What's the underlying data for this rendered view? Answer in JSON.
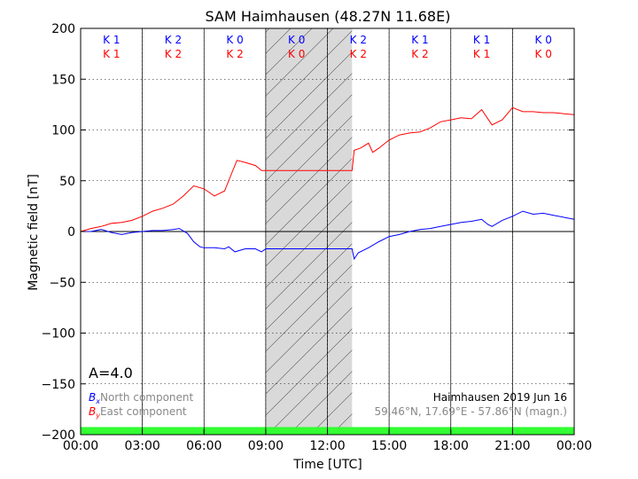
{
  "chart_data": {
    "type": "line",
    "title": "SAM Haimhausen (48.27N 11.68E)",
    "xlabel": "Time [UTC]",
    "ylabel": "Magnetic field [nT]",
    "xlim": [
      0,
      24
    ],
    "ylim": [
      -200,
      200
    ],
    "x_ticks": [
      "00:00",
      "03:00",
      "06:00",
      "09:00",
      "12:00",
      "15:00",
      "18:00",
      "21:00",
      "00:00"
    ],
    "y_ticks": [
      "−200",
      "−150",
      "−100",
      "−50",
      "0",
      "50",
      "100",
      "150",
      "200"
    ],
    "grid": true,
    "data_gap": {
      "start": 9.0,
      "end": 13.2
    },
    "k_indices": {
      "north": [
        "K 1",
        "K 2",
        "K 0",
        "K 0",
        "K 2",
        "K 1",
        "K 1",
        "K 0"
      ],
      "east": [
        "K 1",
        "K 2",
        "K 2",
        "K 0",
        "K 2",
        "K 2",
        "K 1",
        "K 0"
      ]
    },
    "a_index": "A=4.0",
    "legend": {
      "placement": "bottom-left",
      "north_symbol": "B",
      "north_sub": "x",
      "north_label": "North component",
      "east_symbol": "B",
      "east_sub": "y",
      "east_label": "East component"
    },
    "station_info": {
      "line1": "Haimhausen 2019 Jun 16",
      "line2": "59.46°N, 17.69°E - 57.86°N (magn.)"
    },
    "series": [
      {
        "color": "#0000ff",
        "x": [
          0,
          0.5,
          1,
          1.5,
          2,
          2.5,
          3,
          3.5,
          4,
          4.5,
          4.8,
          5.2,
          5.5,
          5.8,
          6.0,
          6.5,
          7.0,
          7.2,
          7.5,
          8.0,
          8.5,
          8.8,
          9.0,
          13.2,
          13.3,
          13.5,
          14.0,
          14.5,
          15.0,
          15.5,
          16.0,
          16.5,
          17.0,
          17.5,
          18.0,
          18.5,
          19.0,
          19.5,
          19.8,
          20.0,
          20.5,
          21.0,
          21.5,
          22.0,
          22.5,
          23.0,
          23.5,
          24.0
        ],
        "values": [
          0,
          0,
          2,
          -1,
          -3,
          -1,
          0,
          1,
          1,
          2,
          3,
          -2,
          -10,
          -15,
          -16,
          -16,
          -17,
          -15,
          -20,
          -17,
          -17,
          -20,
          -17,
          -17,
          -27,
          -21,
          -16,
          -10,
          -5,
          -3,
          0,
          2,
          3,
          5,
          7,
          9,
          10,
          12,
          7,
          5,
          11,
          15,
          20,
          17,
          18,
          16,
          14,
          12
        ]
      },
      {
        "color": "#ff0000",
        "x": [
          0,
          0.5,
          1,
          1.5,
          2,
          2.5,
          3,
          3.5,
          4,
          4.5,
          5.0,
          5.5,
          6.0,
          6.5,
          7.0,
          7.3,
          7.6,
          8.0,
          8.5,
          8.8,
          9.0,
          13.2,
          13.3,
          13.6,
          14.0,
          14.2,
          14.5,
          15.0,
          15.5,
          16.0,
          16.5,
          17.0,
          17.5,
          18.0,
          18.5,
          19.0,
          19.5,
          20.0,
          20.5,
          21.0,
          21.5,
          22.0,
          22.5,
          23.0,
          23.5,
          24.0
        ],
        "values": [
          0,
          3,
          5,
          8,
          9,
          11,
          15,
          20,
          23,
          27,
          35,
          45,
          42,
          35,
          40,
          55,
          70,
          68,
          65,
          60,
          60,
          60,
          80,
          82,
          87,
          78,
          82,
          90,
          95,
          97,
          98,
          102,
          108,
          110,
          112,
          111,
          120,
          105,
          110,
          122,
          118,
          118,
          117,
          117,
          116,
          115
        ]
      }
    ]
  }
}
